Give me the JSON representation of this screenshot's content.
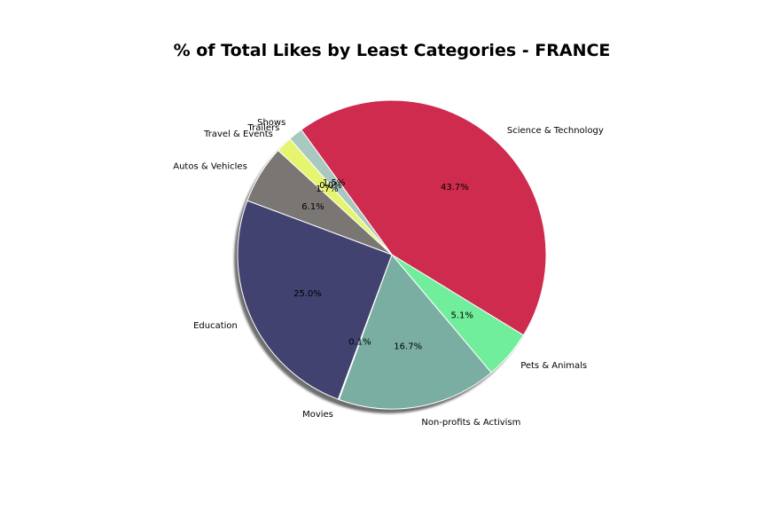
{
  "chart_data": {
    "type": "pie",
    "title": "% of Total Likes by Least Categories - FRANCE",
    "start_angle_deg": 126,
    "direction": "clockwise",
    "shadow": true,
    "slices": [
      {
        "label": "Science & Technology",
        "value": 43.7,
        "pct_label": "43.7%",
        "color": "#cf2b4f"
      },
      {
        "label": "Pets & Animals",
        "value": 5.1,
        "pct_label": "5.1%",
        "color": "#70ee9c"
      },
      {
        "label": "Non-profits & Activism",
        "value": 16.7,
        "pct_label": "16.7%",
        "color": "#7aaea2"
      },
      {
        "label": "Movies",
        "value": 0.1,
        "pct_label": "0.1%",
        "color": "#5f8a9a"
      },
      {
        "label": "Education",
        "value": 25.0,
        "pct_label": "25.0%",
        "color": "#414270"
      },
      {
        "label": "Autos & Vehicles",
        "value": 6.1,
        "pct_label": "6.1%",
        "color": "#7a7674"
      },
      {
        "label": "Travel & Events",
        "value": 1.7,
        "pct_label": "1.7%",
        "color": "#e6f570"
      },
      {
        "label": "Trailers",
        "value": 0.0,
        "pct_label": "0.0%",
        "color": "#d9e8a0"
      },
      {
        "label": "Shows",
        "value": 1.5,
        "pct_label": "1.5%",
        "color": "#a8c8c0"
      }
    ]
  }
}
